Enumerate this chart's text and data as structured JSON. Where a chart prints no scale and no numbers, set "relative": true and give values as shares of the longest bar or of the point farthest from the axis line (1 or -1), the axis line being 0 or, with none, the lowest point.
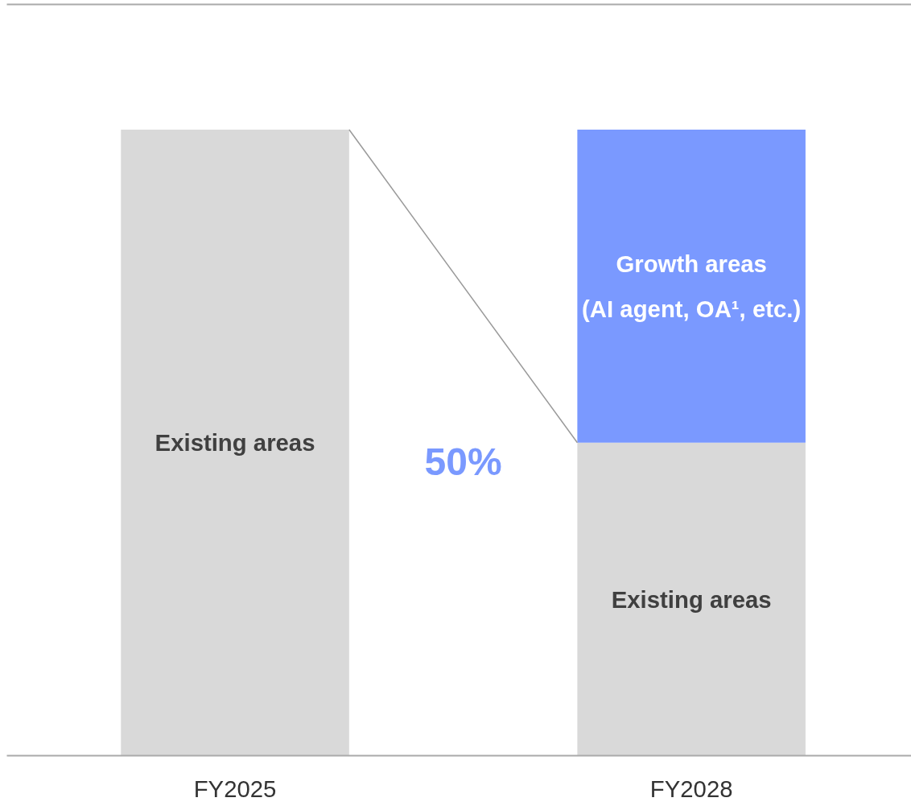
{
  "chart_data": {
    "type": "bar",
    "stacked": true,
    "relative": true,
    "categories": [
      "FY2025",
      "FY2028"
    ],
    "series": [
      {
        "name": "Existing areas",
        "color": "#d9d9d9",
        "values": [
          1,
          0.5
        ]
      },
      {
        "name": "Growth areas\n(AI agent, OA¹, etc.)",
        "color": "#7a99ff",
        "values": [
          null,
          0.5
        ]
      }
    ],
    "annotations": [
      "50%"
    ]
  }
}
